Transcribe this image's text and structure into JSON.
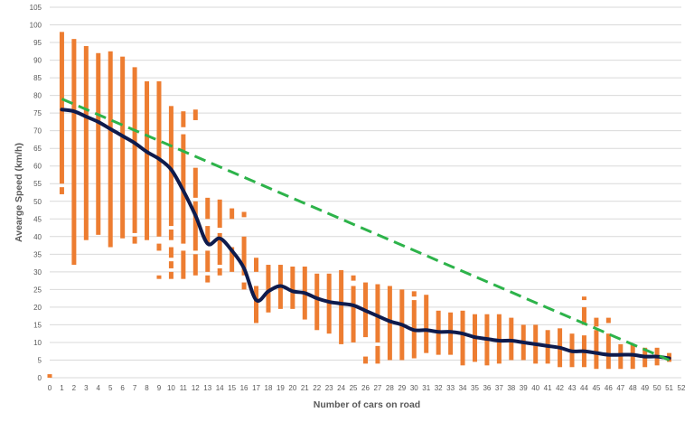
{
  "chart_data": {
    "type": "line",
    "xlabel": "Number of cars on road",
    "ylabel": "Avearge Speed (km/h)",
    "xlim": [
      0,
      52
    ],
    "ylim": [
      0,
      105
    ],
    "x_ticks": [
      0,
      1,
      2,
      3,
      4,
      5,
      6,
      7,
      8,
      9,
      10,
      11,
      12,
      13,
      14,
      15,
      16,
      17,
      18,
      19,
      20,
      21,
      22,
      23,
      24,
      25,
      26,
      27,
      28,
      29,
      30,
      31,
      32,
      33,
      34,
      35,
      36,
      37,
      38,
      39,
      40,
      41,
      42,
      43,
      44,
      45,
      46,
      47,
      48,
      49,
      50,
      51,
      52
    ],
    "y_ticks": [
      0,
      5,
      10,
      15,
      20,
      25,
      30,
      35,
      40,
      45,
      50,
      55,
      60,
      65,
      70,
      75,
      80,
      85,
      90,
      95,
      100,
      105
    ],
    "grid": "horizontal",
    "colors": {
      "range_bars": "#ED7D31",
      "mean_line": "#0E1B4D",
      "trend_line": "#2DB34A",
      "grid": "#D9D9D9",
      "text": "#595959"
    },
    "range_bars": [
      {
        "x": 0,
        "segments": [
          [
            0,
            1
          ]
        ]
      },
      {
        "x": 1,
        "segments": [
          [
            52,
            54
          ],
          [
            55,
            98
          ]
        ]
      },
      {
        "x": 2,
        "segments": [
          [
            32,
            96
          ]
        ]
      },
      {
        "x": 3,
        "segments": [
          [
            39,
            94
          ]
        ]
      },
      {
        "x": 4,
        "segments": [
          [
            40.5,
            92
          ]
        ]
      },
      {
        "x": 5,
        "segments": [
          [
            37,
            92.5
          ]
        ]
      },
      {
        "x": 6,
        "segments": [
          [
            39.5,
            91
          ]
        ]
      },
      {
        "x": 7,
        "segments": [
          [
            38,
            40
          ],
          [
            41,
            88
          ]
        ]
      },
      {
        "x": 8,
        "segments": [
          [
            39,
            84
          ]
        ]
      },
      {
        "x": 9,
        "segments": [
          [
            28,
            29
          ],
          [
            36,
            38
          ],
          [
            40,
            84
          ]
        ]
      },
      {
        "x": 10,
        "segments": [
          [
            28,
            30
          ],
          [
            31,
            33
          ],
          [
            34,
            37
          ],
          [
            39,
            42
          ],
          [
            43,
            77
          ]
        ]
      },
      {
        "x": 11,
        "segments": [
          [
            28,
            36
          ],
          [
            38,
            69
          ],
          [
            71,
            75.5
          ]
        ]
      },
      {
        "x": 12,
        "segments": [
          [
            29,
            35
          ],
          [
            36,
            50
          ],
          [
            51,
            59.5
          ],
          [
            73,
            76
          ]
        ]
      },
      {
        "x": 13,
        "segments": [
          [
            27,
            29
          ],
          [
            30,
            36
          ],
          [
            38,
            43
          ],
          [
            45,
            51
          ]
        ]
      },
      {
        "x": 14,
        "segments": [
          [
            29,
            31
          ],
          [
            32,
            41
          ],
          [
            42.5,
            50.5
          ]
        ]
      },
      {
        "x": 15,
        "segments": [
          [
            30,
            37
          ],
          [
            45,
            48
          ]
        ]
      },
      {
        "x": 16,
        "segments": [
          [
            25,
            27
          ],
          [
            29,
            40
          ],
          [
            45.5,
            47
          ]
        ]
      },
      {
        "x": 17,
        "segments": [
          [
            15.5,
            26
          ],
          [
            30,
            34
          ]
        ]
      },
      {
        "x": 18,
        "segments": [
          [
            18.5,
            32
          ]
        ]
      },
      {
        "x": 19,
        "segments": [
          [
            19.5,
            32
          ]
        ]
      },
      {
        "x": 20,
        "segments": [
          [
            19.5,
            31.5
          ]
        ]
      },
      {
        "x": 21,
        "segments": [
          [
            16.5,
            31.5
          ]
        ]
      },
      {
        "x": 22,
        "segments": [
          [
            13.5,
            29.5
          ]
        ]
      },
      {
        "x": 23,
        "segments": [
          [
            12.5,
            29.5
          ]
        ]
      },
      {
        "x": 24,
        "segments": [
          [
            9.5,
            30.5
          ]
        ]
      },
      {
        "x": 25,
        "segments": [
          [
            10,
            26
          ],
          [
            27.5,
            29
          ]
        ]
      },
      {
        "x": 26,
        "segments": [
          [
            4,
            6
          ],
          [
            11.5,
            27
          ]
        ]
      },
      {
        "x": 27,
        "segments": [
          [
            4,
            9
          ],
          [
            10,
            26.5
          ]
        ]
      },
      {
        "x": 28,
        "segments": [
          [
            5,
            26
          ]
        ]
      },
      {
        "x": 29,
        "segments": [
          [
            5,
            25
          ]
        ]
      },
      {
        "x": 30,
        "segments": [
          [
            5.5,
            22
          ],
          [
            23,
            24.5
          ]
        ]
      },
      {
        "x": 31,
        "segments": [
          [
            7,
            23.5
          ]
        ]
      },
      {
        "x": 32,
        "segments": [
          [
            6.5,
            19
          ]
        ]
      },
      {
        "x": 33,
        "segments": [
          [
            6.5,
            18.5
          ]
        ]
      },
      {
        "x": 34,
        "segments": [
          [
            3.5,
            19
          ]
        ]
      },
      {
        "x": 35,
        "segments": [
          [
            4.5,
            18
          ]
        ]
      },
      {
        "x": 36,
        "segments": [
          [
            3.5,
            18
          ]
        ]
      },
      {
        "x": 37,
        "segments": [
          [
            4,
            18
          ]
        ]
      },
      {
        "x": 38,
        "segments": [
          [
            5,
            17
          ]
        ]
      },
      {
        "x": 39,
        "segments": [
          [
            5,
            15
          ]
        ]
      },
      {
        "x": 40,
        "segments": [
          [
            4,
            15
          ]
        ]
      },
      {
        "x": 41,
        "segments": [
          [
            4,
            13.5
          ]
        ]
      },
      {
        "x": 42,
        "segments": [
          [
            3,
            14
          ]
        ]
      },
      {
        "x": 43,
        "segments": [
          [
            3,
            12.5
          ]
        ]
      },
      {
        "x": 44,
        "segments": [
          [
            3,
            12
          ],
          [
            15,
            20
          ],
          [
            22,
            23
          ]
        ]
      },
      {
        "x": 45,
        "segments": [
          [
            2.5,
            13.5
          ],
          [
            14.5,
            17
          ]
        ]
      },
      {
        "x": 46,
        "segments": [
          [
            2.5,
            12.5
          ],
          [
            15.5,
            17
          ]
        ]
      },
      {
        "x": 47,
        "segments": [
          [
            2.5,
            9.5
          ]
        ]
      },
      {
        "x": 48,
        "segments": [
          [
            2.5,
            9.5
          ]
        ]
      },
      {
        "x": 49,
        "segments": [
          [
            3,
            8.5
          ]
        ]
      },
      {
        "x": 50,
        "segments": [
          [
            3.5,
            8.5
          ]
        ]
      },
      {
        "x": 51,
        "segments": [
          [
            4.5,
            7
          ]
        ]
      }
    ],
    "mean_line": {
      "x": [
        1,
        2,
        3,
        4,
        5,
        6,
        7,
        8,
        9,
        10,
        11,
        12,
        13,
        14,
        15,
        16,
        17,
        18,
        19,
        20,
        21,
        22,
        23,
        24,
        25,
        26,
        27,
        28,
        29,
        30,
        31,
        32,
        33,
        34,
        35,
        36,
        37,
        38,
        39,
        40,
        41,
        42,
        43,
        44,
        45,
        46,
        47,
        48,
        49,
        50,
        51
      ],
      "y": [
        76,
        75.5,
        74,
        72.5,
        70.5,
        68.5,
        66.5,
        64,
        62,
        59,
        53,
        46,
        38,
        39.5,
        36,
        31,
        22,
        24.5,
        26,
        24.5,
        24,
        22.5,
        21.5,
        21,
        20.5,
        19,
        17.5,
        16,
        15,
        13.5,
        13.5,
        13,
        13,
        12.5,
        11.5,
        11,
        10.5,
        10.5,
        10,
        9.5,
        9,
        8.5,
        7.5,
        7.5,
        7,
        6.5,
        6.5,
        6.5,
        6,
        6,
        5.5
      ]
    },
    "trend_line": {
      "x": [
        1,
        51
      ],
      "y": [
        79,
        5
      ]
    }
  }
}
